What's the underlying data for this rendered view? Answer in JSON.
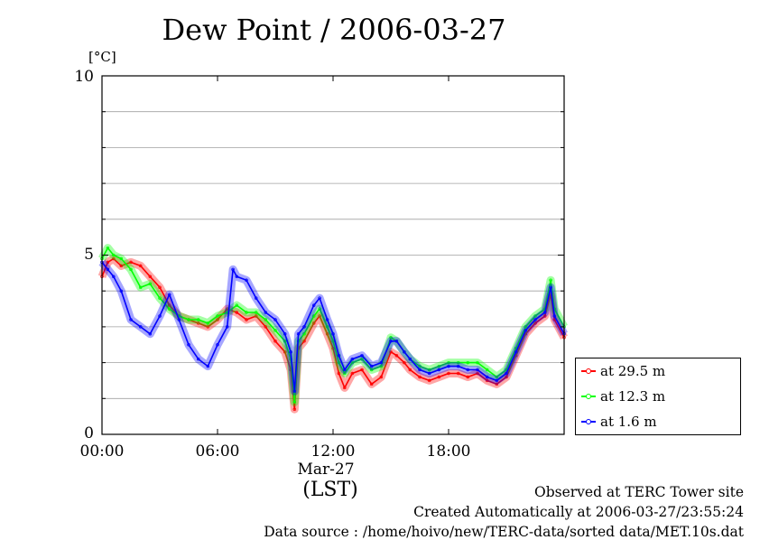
{
  "chart_data": {
    "type": "line",
    "title": "Dew Point / 2006-03-27",
    "ylabel": "[°C]",
    "xlabel": "(LST)",
    "date_label": "Mar-27",
    "ylim": [
      0,
      10
    ],
    "xlim": [
      0,
      24
    ],
    "y_ticks": [
      "0",
      "5",
      "10"
    ],
    "x_ticks": [
      "00:00",
      "06:00",
      "12:00",
      "18:00"
    ],
    "grid": true,
    "legend_position": "bottom-right",
    "series": [
      {
        "name": "at 29.5 m",
        "color": "#ff0000",
        "points": [
          [
            0,
            4.4
          ],
          [
            0.3,
            4.8
          ],
          [
            0.6,
            4.9
          ],
          [
            1,
            4.7
          ],
          [
            1.5,
            4.8
          ],
          [
            2,
            4.7
          ],
          [
            2.5,
            4.4
          ],
          [
            3,
            4.1
          ],
          [
            3.5,
            3.6
          ],
          [
            4,
            3.3
          ],
          [
            4.5,
            3.2
          ],
          [
            5,
            3.1
          ],
          [
            5.5,
            3.0
          ],
          [
            6,
            3.2
          ],
          [
            6.5,
            3.5
          ],
          [
            7,
            3.4
          ],
          [
            7.5,
            3.2
          ],
          [
            8,
            3.3
          ],
          [
            8.5,
            3.0
          ],
          [
            9,
            2.6
          ],
          [
            9.5,
            2.3
          ],
          [
            9.8,
            1.8
          ],
          [
            10,
            0.7
          ],
          [
            10.2,
            2.4
          ],
          [
            10.5,
            2.6
          ],
          [
            11,
            3.1
          ],
          [
            11.3,
            3.3
          ],
          [
            11.7,
            2.8
          ],
          [
            12,
            2.4
          ],
          [
            12.3,
            1.7
          ],
          [
            12.6,
            1.3
          ],
          [
            13,
            1.7
          ],
          [
            13.5,
            1.8
          ],
          [
            14,
            1.4
          ],
          [
            14.5,
            1.6
          ],
          [
            15,
            2.3
          ],
          [
            15.3,
            2.2
          ],
          [
            15.7,
            2.0
          ],
          [
            16,
            1.8
          ],
          [
            16.5,
            1.6
          ],
          [
            17,
            1.5
          ],
          [
            17.5,
            1.6
          ],
          [
            18,
            1.7
          ],
          [
            18.5,
            1.7
          ],
          [
            19,
            1.6
          ],
          [
            19.5,
            1.7
          ],
          [
            20,
            1.5
          ],
          [
            20.5,
            1.4
          ],
          [
            21,
            1.6
          ],
          [
            21.5,
            2.2
          ],
          [
            22,
            2.8
          ],
          [
            22.5,
            3.1
          ],
          [
            23,
            3.3
          ],
          [
            23.3,
            3.9
          ],
          [
            23.5,
            3.2
          ],
          [
            24,
            2.7
          ]
        ]
      },
      {
        "name": "at 12.3 m",
        "color": "#00ff00",
        "points": [
          [
            0,
            4.9
          ],
          [
            0.3,
            5.2
          ],
          [
            0.6,
            5.0
          ],
          [
            1,
            4.9
          ],
          [
            1.5,
            4.6
          ],
          [
            2,
            4.1
          ],
          [
            2.5,
            4.2
          ],
          [
            3,
            3.8
          ],
          [
            3.5,
            3.5
          ],
          [
            4,
            3.3
          ],
          [
            4.5,
            3.2
          ],
          [
            5,
            3.2
          ],
          [
            5.5,
            3.1
          ],
          [
            6,
            3.3
          ],
          [
            6.5,
            3.4
          ],
          [
            7,
            3.6
          ],
          [
            7.5,
            3.4
          ],
          [
            8,
            3.4
          ],
          [
            8.5,
            3.2
          ],
          [
            9,
            2.9
          ],
          [
            9.5,
            2.6
          ],
          [
            9.8,
            2.1
          ],
          [
            10,
            0.9
          ],
          [
            10.2,
            2.6
          ],
          [
            10.5,
            2.8
          ],
          [
            11,
            3.3
          ],
          [
            11.3,
            3.5
          ],
          [
            11.7,
            3.0
          ],
          [
            12,
            2.6
          ],
          [
            12.3,
            2.0
          ],
          [
            12.6,
            1.7
          ],
          [
            13,
            2.0
          ],
          [
            13.5,
            2.1
          ],
          [
            14,
            1.8
          ],
          [
            14.5,
            1.9
          ],
          [
            15,
            2.7
          ],
          [
            15.3,
            2.6
          ],
          [
            15.7,
            2.3
          ],
          [
            16,
            2.1
          ],
          [
            16.5,
            1.9
          ],
          [
            17,
            1.8
          ],
          [
            17.5,
            1.9
          ],
          [
            18,
            2.0
          ],
          [
            18.5,
            2.0
          ],
          [
            19,
            2.0
          ],
          [
            19.5,
            2.0
          ],
          [
            20,
            1.8
          ],
          [
            20.5,
            1.6
          ],
          [
            21,
            1.8
          ],
          [
            21.5,
            2.4
          ],
          [
            22,
            3.0
          ],
          [
            22.5,
            3.3
          ],
          [
            23,
            3.5
          ],
          [
            23.3,
            4.3
          ],
          [
            23.5,
            3.5
          ],
          [
            24,
            3.0
          ]
        ]
      },
      {
        "name": "at 1.6 m",
        "color": "#0000ff",
        "points": [
          [
            0,
            4.8
          ],
          [
            0.3,
            4.6
          ],
          [
            0.6,
            4.4
          ],
          [
            1,
            4.0
          ],
          [
            1.5,
            3.2
          ],
          [
            2,
            3.0
          ],
          [
            2.5,
            2.8
          ],
          [
            3,
            3.3
          ],
          [
            3.5,
            3.9
          ],
          [
            4,
            3.2
          ],
          [
            4.5,
            2.5
          ],
          [
            5,
            2.1
          ],
          [
            5.5,
            1.9
          ],
          [
            6,
            2.5
          ],
          [
            6.5,
            3.0
          ],
          [
            6.8,
            4.6
          ],
          [
            7,
            4.4
          ],
          [
            7.5,
            4.3
          ],
          [
            8,
            3.8
          ],
          [
            8.5,
            3.4
          ],
          [
            9,
            3.2
          ],
          [
            9.5,
            2.8
          ],
          [
            9.8,
            2.3
          ],
          [
            10,
            1.2
          ],
          [
            10.2,
            2.8
          ],
          [
            10.5,
            3.0
          ],
          [
            11,
            3.6
          ],
          [
            11.3,
            3.8
          ],
          [
            11.7,
            3.2
          ],
          [
            12,
            2.8
          ],
          [
            12.3,
            2.2
          ],
          [
            12.6,
            1.8
          ],
          [
            13,
            2.1
          ],
          [
            13.5,
            2.2
          ],
          [
            14,
            1.9
          ],
          [
            14.5,
            2.0
          ],
          [
            15,
            2.6
          ],
          [
            15.3,
            2.6
          ],
          [
            15.7,
            2.3
          ],
          [
            16,
            2.1
          ],
          [
            16.5,
            1.8
          ],
          [
            17,
            1.7
          ],
          [
            17.5,
            1.8
          ],
          [
            18,
            1.9
          ],
          [
            18.5,
            1.9
          ],
          [
            19,
            1.8
          ],
          [
            19.5,
            1.8
          ],
          [
            20,
            1.6
          ],
          [
            20.5,
            1.5
          ],
          [
            21,
            1.7
          ],
          [
            21.5,
            2.3
          ],
          [
            22,
            2.9
          ],
          [
            22.5,
            3.2
          ],
          [
            23,
            3.4
          ],
          [
            23.3,
            4.1
          ],
          [
            23.5,
            3.3
          ],
          [
            24,
            2.8
          ]
        ]
      }
    ]
  },
  "footer": {
    "site": "Observed at TERC Tower site",
    "created": "Created Automatically at 2006-03-27/23:55:24",
    "source": "Data source : /home/hoivo/new/TERC-data/sorted  data/MET.10s.dat"
  }
}
